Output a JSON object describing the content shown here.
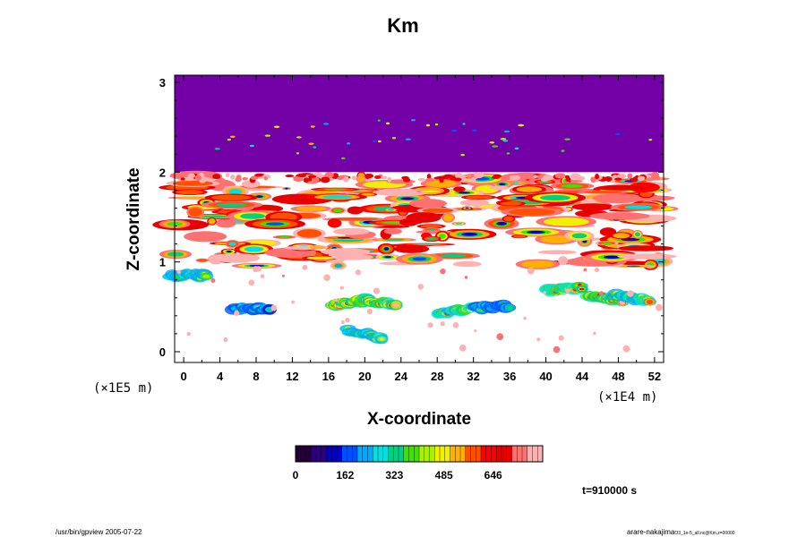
{
  "chart_data": {
    "type": "heatmap",
    "title": "Km",
    "xlabel": "X-coordinate",
    "ylabel": "Z-coordinate",
    "x_unit": "(×1E4 m)",
    "y_unit": "(×1E5 m)",
    "xlim": [
      -1,
      53
    ],
    "ylim": [
      -0.12,
      3.08
    ],
    "x_ticks": [
      "0",
      "4",
      "8",
      "12",
      "16",
      "20",
      "24",
      "28",
      "32",
      "36",
      "40",
      "44",
      "48",
      "52"
    ],
    "y_ticks": [
      "0",
      "1",
      "2",
      "3"
    ],
    "colorbar": {
      "labels": [
        "0",
        "162",
        "323",
        "485",
        "646"
      ],
      "range": [
        0,
        808
      ]
    },
    "background_value": "0",
    "upper_region": {
      "z_from": 2.0,
      "z_to": 3.08,
      "level": 0
    },
    "features": [
      {
        "kind": "turbulent_layer",
        "x_from": -1,
        "x_to": 53,
        "z_from": 0.95,
        "z_to": 1.97,
        "peak": 808
      },
      {
        "kind": "plume",
        "x": 7.5,
        "z": 0.48,
        "peak": 420
      },
      {
        "kind": "plume",
        "x": 18.5,
        "z": 0.55,
        "peak": 808
      },
      {
        "kind": "plume",
        "x": 21.5,
        "z": 0.55,
        "peak": 808
      },
      {
        "kind": "plume",
        "x": 20.0,
        "z": 0.2,
        "peak": 560
      },
      {
        "kind": "plume",
        "x": 30.0,
        "z": 0.45,
        "peak": 680
      },
      {
        "kind": "plume",
        "x": 34.0,
        "z": 0.5,
        "peak": 420
      },
      {
        "kind": "plume",
        "x": 42.0,
        "z": 0.7,
        "peak": 700
      },
      {
        "kind": "plume",
        "x": 46.5,
        "z": 0.6,
        "peak": 808
      },
      {
        "kind": "plume",
        "x": 49.5,
        "z": 0.6,
        "peak": 640
      },
      {
        "kind": "plume",
        "x": 0.5,
        "z": 0.85,
        "peak": 560
      }
    ]
  },
  "annotations": {
    "time": "t=910000 s",
    "footer_left": "/usr/bin/gpview 2005-07-22",
    "footer_right": "arare-nakajima",
    "footer_right_small": "O3_1e-5_all.nc@Km,z=00000"
  },
  "colors": {
    "palette": [
      "#220033",
      "#2a0080",
      "#0000c8",
      "#0050ff",
      "#00a8ff",
      "#00e0e0",
      "#00d080",
      "#40e000",
      "#a8f000",
      "#f0f000",
      "#ffb000",
      "#ff5000",
      "#ff0000",
      "#e80000",
      "#ff7070",
      "#ffb0b0"
    ],
    "background_fill": "#7400a8",
    "frame": "#000000"
  }
}
